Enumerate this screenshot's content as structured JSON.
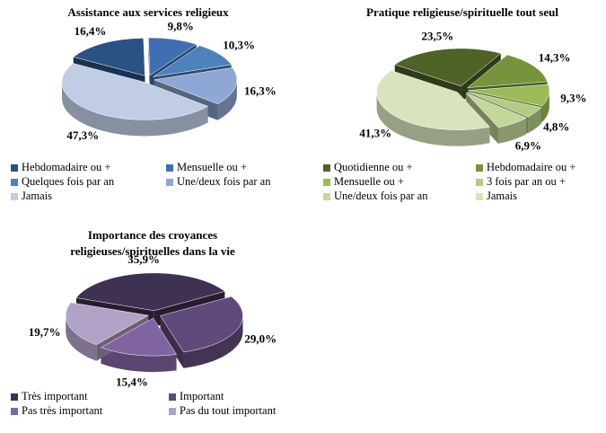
{
  "chart_data": [
    {
      "type": "pie",
      "title": "Assistance aux services religieux",
      "categories": [
        "Hebdomadaire ou +",
        "Mensuelle ou +",
        "Quelques fois par an",
        "Une/deux fois par an",
        "Jamais"
      ],
      "values": [
        16.4,
        9.8,
        10.3,
        16.3,
        47.3
      ],
      "value_labels": [
        "16,4%",
        "9,8%",
        "10,3%",
        "16,3%",
        "47,3%"
      ],
      "colors": [
        "#2b5285",
        "#3f6fb0",
        "#4f81bd",
        "#8fa7d4",
        "#c0cde5"
      ]
    },
    {
      "type": "pie",
      "title": "Pratique  religieuse/spirituelle tout seul",
      "categories": [
        "Quotidienne ou +",
        "Hebdomadaire ou +",
        "Mensuelle ou +",
        "3 fois par an ou +",
        "Une/deux fois par an",
        "Jamais"
      ],
      "values": [
        23.5,
        14.3,
        9.3,
        4.8,
        6.9,
        41.3
      ],
      "value_labels": [
        "23,5%",
        "14,3%",
        "9,3%",
        "4,8%",
        "6,9%",
        "41,3%"
      ],
      "colors": [
        "#4f6228",
        "#77933c",
        "#9bbb59",
        "#b3cc82",
        "#c4d79b",
        "#d7e4bd"
      ]
    },
    {
      "type": "pie",
      "title": [
        "Importance  des croyances",
        "religieuses/spirituelles dans la vie"
      ],
      "categories": [
        "Très important",
        "Important",
        "Pas très important",
        "Pas du tout important"
      ],
      "values": [
        35.9,
        29.0,
        15.4,
        19.7
      ],
      "value_labels": [
        "35,9%",
        "29,0%",
        "15,4%",
        "19,7%"
      ],
      "colors": [
        "#3f3151",
        "#604a7b",
        "#8064a2",
        "#b3a2c7"
      ]
    }
  ]
}
